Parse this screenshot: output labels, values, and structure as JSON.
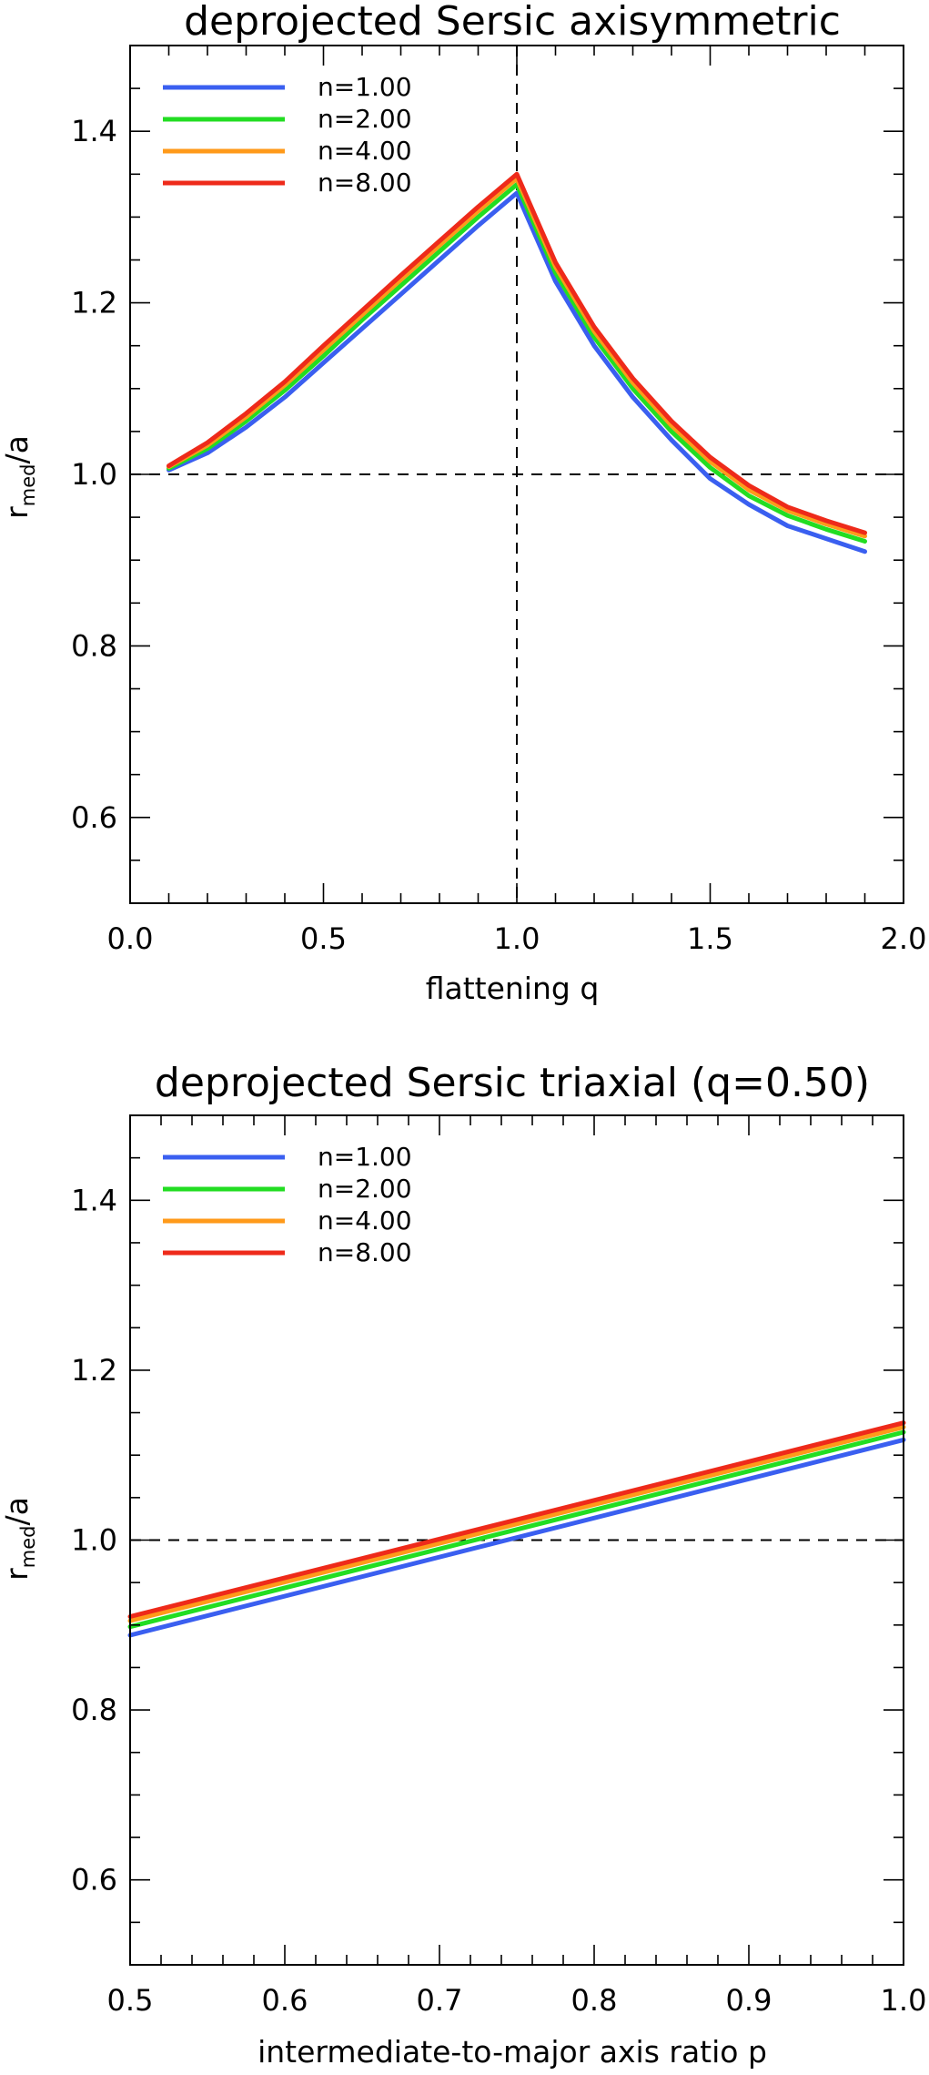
{
  "chart_data": [
    {
      "type": "line",
      "title": "deprojected Sersic axisymmetric",
      "xlabel": "flattening q",
      "ylabel": {
        "base": "r",
        "subscript": "med",
        "suffix": "/a"
      },
      "xlim": [
        0.0,
        2.0
      ],
      "ylim": [
        0.5,
        1.5
      ],
      "xticks": [
        0.0,
        0.5,
        1.0,
        1.5,
        2.0
      ],
      "xtick_labels": [
        "0.0",
        "0.5",
        "1.0",
        "1.5",
        "2.0"
      ],
      "yticks": [
        0.6,
        0.8,
        1.0,
        1.2,
        1.4
      ],
      "ytick_labels": [
        "0.6",
        "0.8",
        "1.0",
        "1.2",
        "1.4"
      ],
      "x_minor_step": 0.1,
      "y_minor_step": 0.05,
      "reference_lines": {
        "horizontal": 1.0,
        "vertical": 1.0
      },
      "grid": false,
      "legend_position": "top-left",
      "x": [
        0.1,
        0.2,
        0.3,
        0.4,
        0.5,
        0.6,
        0.7,
        0.8,
        0.9,
        1.0,
        1.1,
        1.2,
        1.3,
        1.4,
        1.5,
        1.6,
        1.7,
        1.8,
        1.9
      ],
      "series": [
        {
          "name": "n=1.00",
          "color": "#3a5ff0",
          "values": [
            1.005,
            1.025,
            1.055,
            1.09,
            1.13,
            1.17,
            1.21,
            1.25,
            1.29,
            1.328,
            1.225,
            1.15,
            1.09,
            1.04,
            0.995,
            0.965,
            0.94,
            0.925,
            0.91
          ]
        },
        {
          "name": "n=2.00",
          "color": "#22dd22",
          "values": [
            1.007,
            1.03,
            1.062,
            1.098,
            1.138,
            1.18,
            1.22,
            1.26,
            1.3,
            1.338,
            1.235,
            1.16,
            1.1,
            1.05,
            1.008,
            0.975,
            0.952,
            0.936,
            0.922
          ]
        },
        {
          "name": "n=4.00",
          "color": "#ff9a1a",
          "values": [
            1.009,
            1.034,
            1.067,
            1.104,
            1.145,
            1.186,
            1.227,
            1.267,
            1.307,
            1.345,
            1.242,
            1.167,
            1.107,
            1.057,
            1.015,
            0.982,
            0.958,
            0.942,
            0.928
          ]
        },
        {
          "name": "n=8.00",
          "color": "#ee2a1a",
          "values": [
            1.01,
            1.037,
            1.071,
            1.108,
            1.15,
            1.191,
            1.232,
            1.272,
            1.312,
            1.35,
            1.247,
            1.172,
            1.112,
            1.062,
            1.02,
            0.987,
            0.962,
            0.946,
            0.932
          ]
        }
      ]
    },
    {
      "type": "line",
      "title": "deprojected Sersic triaxial (q=0.50)",
      "xlabel": "intermediate-to-major axis ratio p",
      "ylabel": {
        "base": "r",
        "subscript": "med",
        "suffix": "/a"
      },
      "xlim": [
        0.5,
        1.0
      ],
      "ylim": [
        0.5,
        1.5
      ],
      "xticks": [
        0.5,
        0.6,
        0.7,
        0.8,
        0.9,
        1.0
      ],
      "xtick_labels": [
        "0.5",
        "0.6",
        "0.7",
        "0.8",
        "0.9",
        "1.0"
      ],
      "yticks": [
        0.6,
        0.8,
        1.0,
        1.2,
        1.4
      ],
      "ytick_labels": [
        "0.6",
        "0.8",
        "1.0",
        "1.2",
        "1.4"
      ],
      "x_minor_step": 0.02,
      "y_minor_step": 0.05,
      "reference_lines": {
        "horizontal": 1.0
      },
      "grid": false,
      "legend_position": "top-left",
      "x": [
        0.5,
        1.0
      ],
      "series": [
        {
          "name": "n=1.00",
          "color": "#3a5ff0",
          "values": [
            0.888,
            1.118
          ]
        },
        {
          "name": "n=2.00",
          "color": "#22dd22",
          "values": [
            0.898,
            1.127
          ]
        },
        {
          "name": "n=4.00",
          "color": "#ff9a1a",
          "values": [
            0.905,
            1.133
          ]
        },
        {
          "name": "n=8.00",
          "color": "#ee2a1a",
          "values": [
            0.91,
            1.138
          ]
        }
      ]
    }
  ]
}
